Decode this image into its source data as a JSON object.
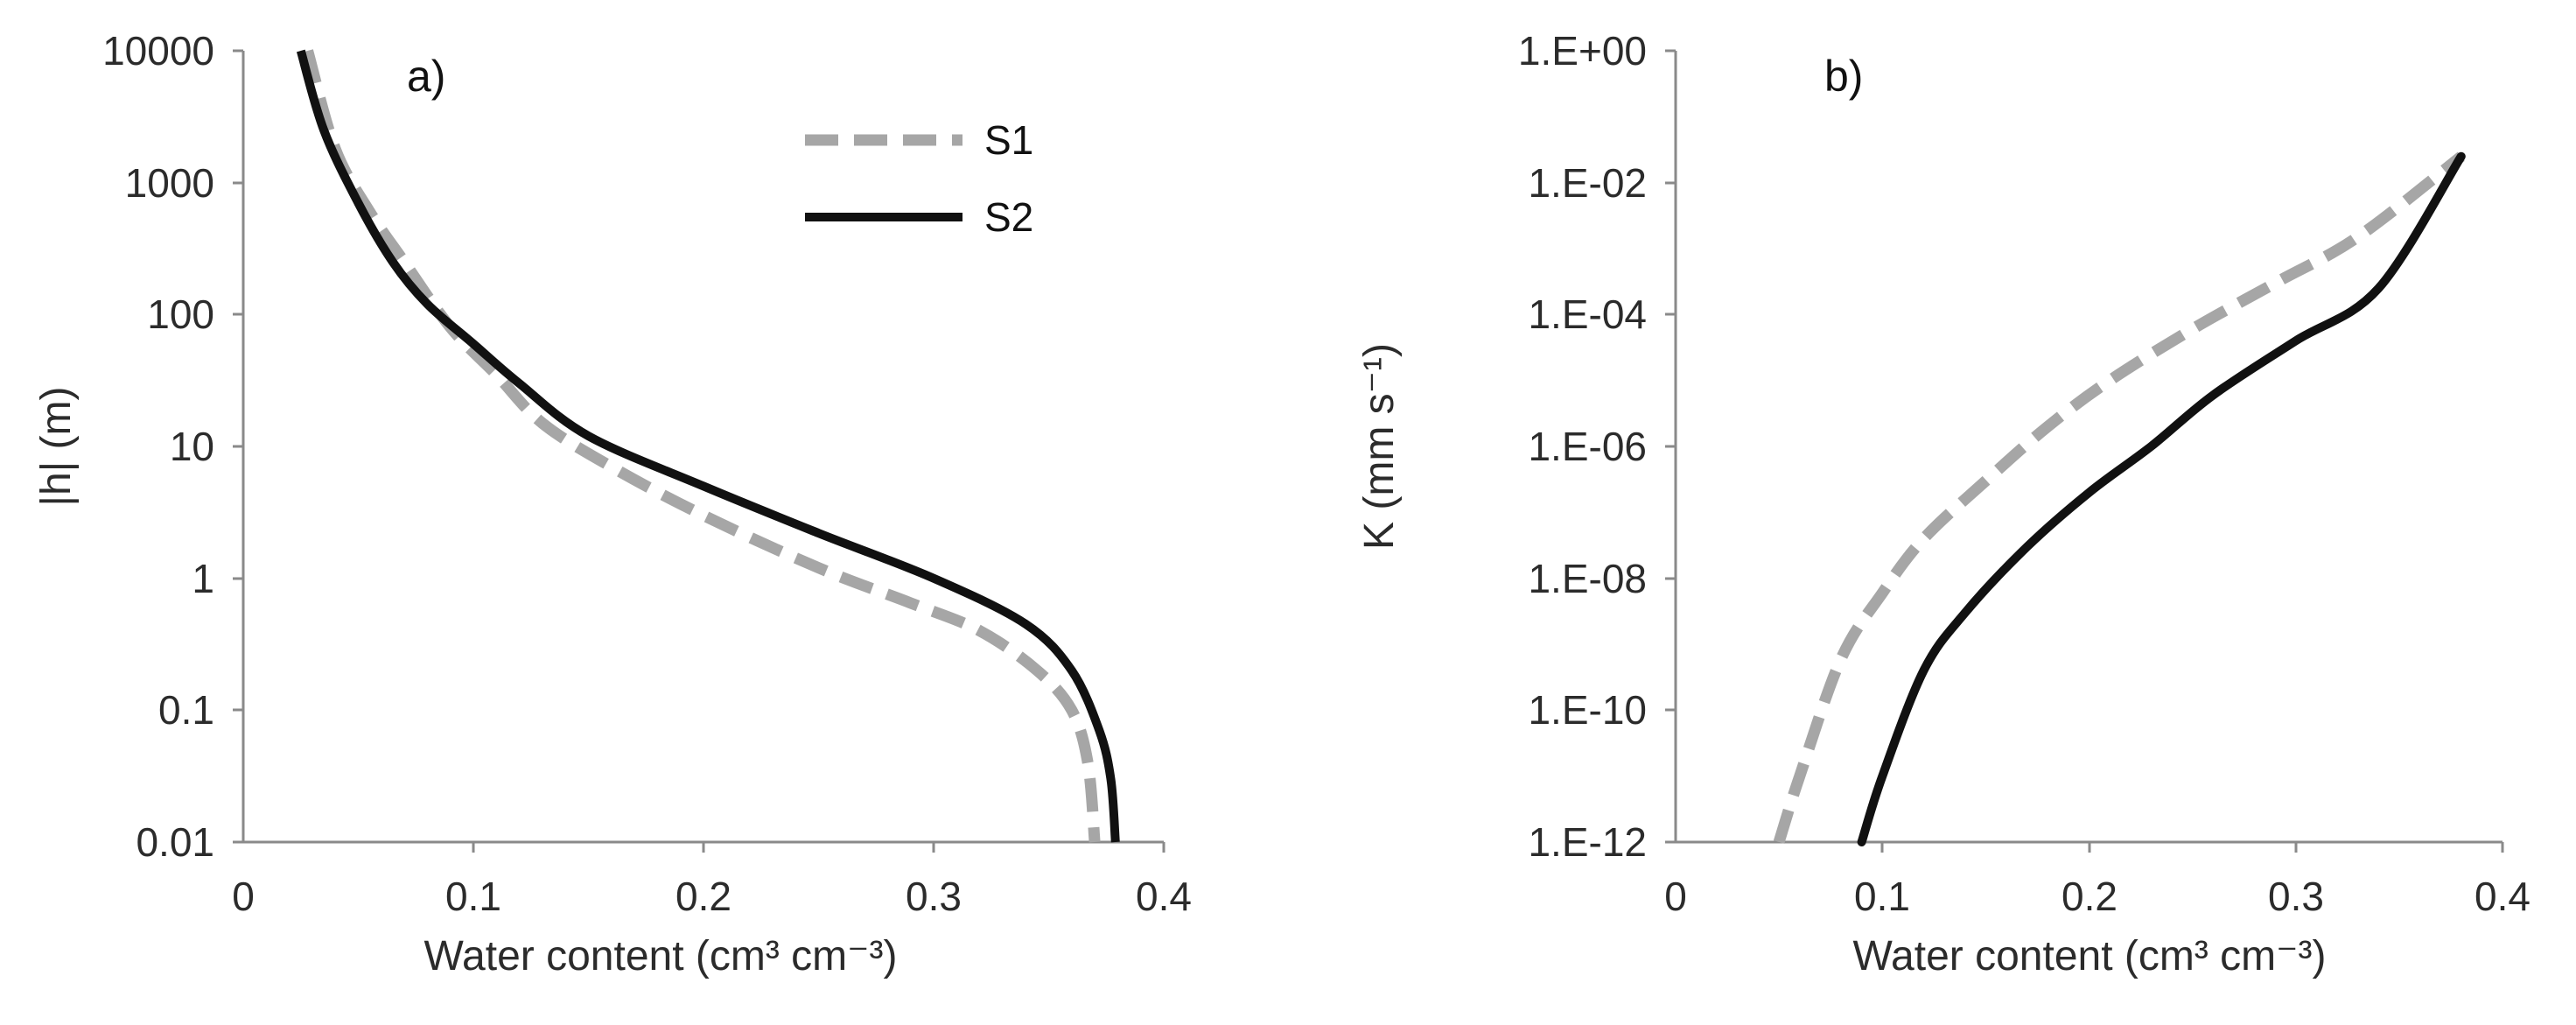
{
  "chart_data": [
    {
      "type": "line",
      "panel_label": "a)",
      "xlabel": "Water content (cm³ cm⁻³)",
      "ylabel": "|h| (m)",
      "xlim": [
        0,
        0.4
      ],
      "ylim": [
        0.01,
        10000
      ],
      "yscale": "log",
      "x_ticks": [
        "0",
        "0.1",
        "0.2",
        "0.3",
        "0.4"
      ],
      "y_ticks": [
        "0.01",
        "0.1",
        "1",
        "10",
        "100",
        "1000",
        "10000"
      ],
      "legend": [
        "S1",
        "S2"
      ],
      "series": [
        {
          "name": "S1",
          "style": "dashed",
          "color": "#a6a6a6",
          "x": [
            0.028,
            0.04,
            0.055,
            0.07,
            0.09,
            0.11,
            0.13,
            0.16,
            0.2,
            0.25,
            0.29,
            0.32,
            0.345,
            0.36,
            0.367,
            0.37
          ],
          "y": [
            10000,
            1800,
            600,
            250,
            80,
            35,
            15,
            7,
            3,
            1.2,
            0.65,
            0.4,
            0.2,
            0.1,
            0.04,
            0.01
          ]
        },
        {
          "name": "S2",
          "style": "solid",
          "color": "#111111",
          "x": [
            0.025,
            0.035,
            0.05,
            0.065,
            0.08,
            0.1,
            0.12,
            0.15,
            0.2,
            0.25,
            0.3,
            0.34,
            0.36,
            0.372,
            0.377,
            0.379
          ],
          "y": [
            10000,
            2500,
            700,
            250,
            120,
            60,
            30,
            12,
            5,
            2.2,
            1,
            0.45,
            0.2,
            0.07,
            0.03,
            0.01
          ]
        }
      ]
    },
    {
      "type": "line",
      "panel_label": "b)",
      "xlabel": "Water content (cm³ cm⁻³)",
      "ylabel": "K (mm s⁻¹)",
      "xlim": [
        0,
        0.4
      ],
      "ylim": [
        1e-12,
        1
      ],
      "yscale": "log",
      "x_ticks": [
        "0",
        "0.1",
        "0.2",
        "0.3",
        "0.4"
      ],
      "y_ticks": [
        "1.E-12",
        "1.E-10",
        "1.E-08",
        "1.E-06",
        "1.E-04",
        "1.E-02",
        "1.E+00"
      ],
      "series": [
        {
          "name": "S1",
          "style": "dashed",
          "color": "#a6a6a6",
          "x": [
            0.05,
            0.06,
            0.08,
            0.1,
            0.12,
            0.15,
            0.18,
            0.21,
            0.25,
            0.29,
            0.33,
            0.38
          ],
          "y": [
            1e-12,
            1e-11,
            6e-10,
            6e-09,
            4e-08,
            3e-07,
            2e-06,
            1e-05,
            6e-05,
            0.0003,
            0.0015,
            0.025
          ]
        },
        {
          "name": "S2",
          "style": "solid",
          "color": "#111111",
          "x": [
            0.09,
            0.1,
            0.12,
            0.14,
            0.17,
            0.2,
            0.23,
            0.26,
            0.3,
            0.34,
            0.38
          ],
          "y": [
            1e-12,
            1e-11,
            4e-10,
            3e-09,
            3e-08,
            2e-07,
            1e-06,
            6e-06,
            4e-05,
            0.00025,
            0.025
          ]
        }
      ]
    }
  ]
}
